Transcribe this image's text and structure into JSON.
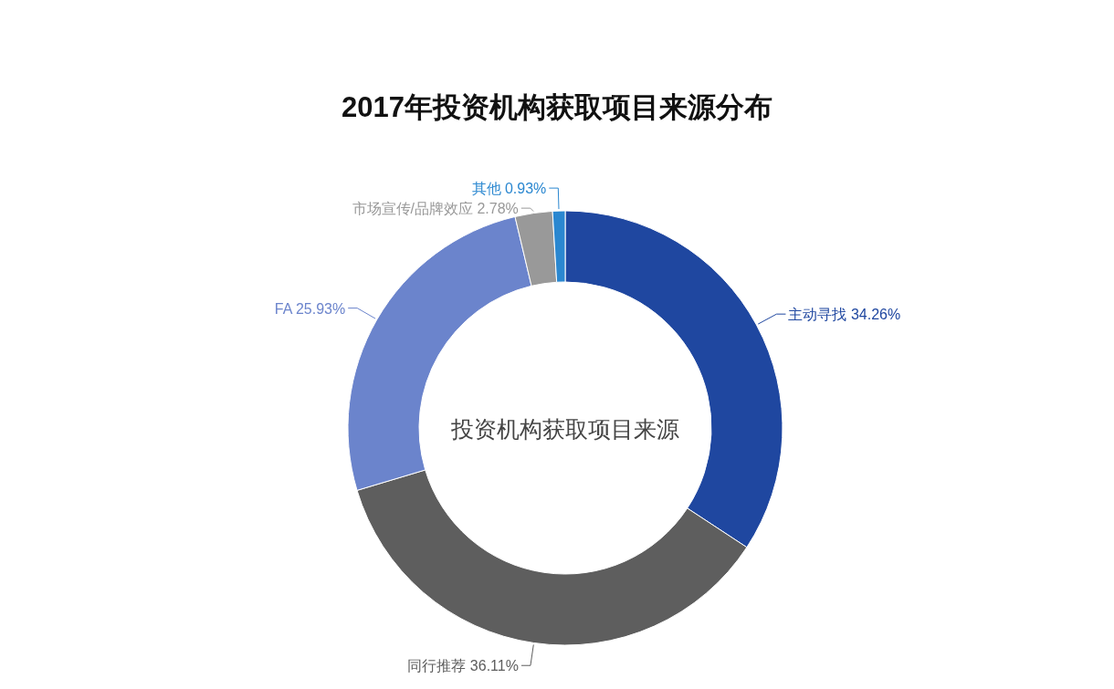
{
  "chart_data": {
    "type": "donut",
    "title": "2017年投资机构获取项目来源分布",
    "categories": [
      "主动寻找",
      "同行推荐",
      "FA",
      "市场宣传/品牌效应",
      "其他"
    ],
    "values": [
      34.26,
      36.11,
      25.93,
      2.78,
      0.93
    ],
    "colors": [
      "#1f47a0",
      "#5e5e5e",
      "#6b84cc",
      "#999999",
      "#2a87d0"
    ],
    "value_labels": [
      "34.26%",
      "36.11%",
      "25.93%",
      "2.78%",
      "0.93%"
    ],
    "annotations": [
      "投资机构获取项目来源"
    ]
  }
}
